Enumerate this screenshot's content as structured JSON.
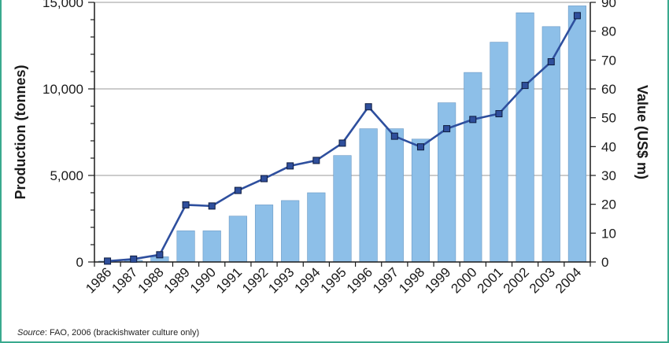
{
  "chart_data": {
    "type": "bar",
    "categories": [
      "1986",
      "1987",
      "1988",
      "1989",
      "1990",
      "1991",
      "1992",
      "1993",
      "1994",
      "1995",
      "1996",
      "1997",
      "1998",
      "1999",
      "2000",
      "2001",
      "2002",
      "2003",
      "2004"
    ],
    "series": [
      {
        "type": "bar",
        "axis": "left",
        "values": [
          50,
          100,
          300,
          1800,
          1800,
          2650,
          3300,
          3550,
          4000,
          6150,
          7700,
          7700,
          7100,
          9200,
          10950,
          12700,
          14400,
          13600,
          14800
        ],
        "color": "#8dbfe8"
      },
      {
        "type": "line",
        "axis": "right",
        "values": [
          0.3,
          1.0,
          2.5,
          19.8,
          19.4,
          24.8,
          28.9,
          33.3,
          35.2,
          41.2,
          53.8,
          43.6,
          39.9,
          46.2,
          49.4,
          51.4,
          61.2,
          69.4,
          85.4
        ],
        "color": "#2e4f9e"
      }
    ],
    "ylabel": "Production (tonnes)",
    "y2label": "Value (US$ m)",
    "ylim": [
      0,
      15000
    ],
    "yticks": [
      0,
      5000,
      10000,
      15000
    ],
    "ytick_labels": [
      "0",
      "5,000",
      "10,000",
      "15,000"
    ],
    "y2lim": [
      0,
      90
    ],
    "y2ticks": [
      0,
      10,
      20,
      30,
      40,
      50,
      60,
      70,
      80,
      90
    ],
    "grid": true
  },
  "source": {
    "label": "Source",
    "text": ": FAO, 2006 (brackishwater culture only)"
  }
}
